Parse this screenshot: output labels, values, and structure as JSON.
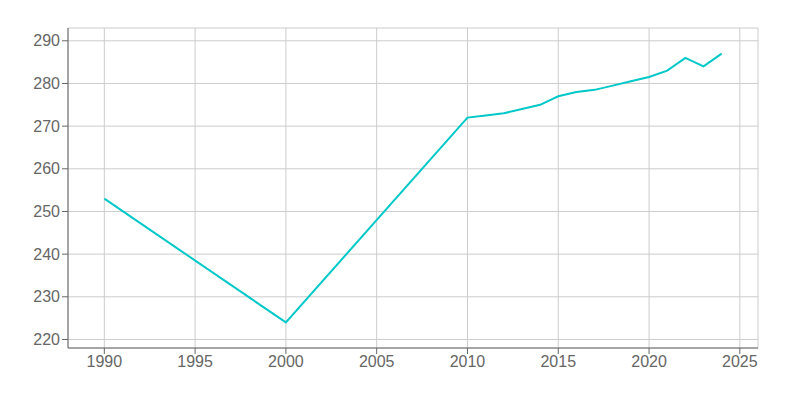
{
  "chart_data": {
    "type": "line",
    "x": [
      1990,
      2000,
      2010,
      2011,
      2012,
      2013,
      2014,
      2015,
      2016,
      2017,
      2018,
      2019,
      2020,
      2021,
      2022,
      2023,
      2024
    ],
    "values": [
      253,
      224,
      272,
      272.5,
      273,
      274,
      275,
      277,
      278,
      278.5,
      279.5,
      280.5,
      281.5,
      283,
      286,
      284,
      287
    ],
    "color": "#00C8C8",
    "xlim": [
      1988,
      2026
    ],
    "ylim": [
      218,
      293
    ],
    "xticks": [
      1990,
      1995,
      2000,
      2005,
      2010,
      2015,
      2020,
      2025
    ],
    "yticks": [
      220,
      230,
      240,
      250,
      260,
      270,
      280,
      290
    ],
    "grid": true
  }
}
